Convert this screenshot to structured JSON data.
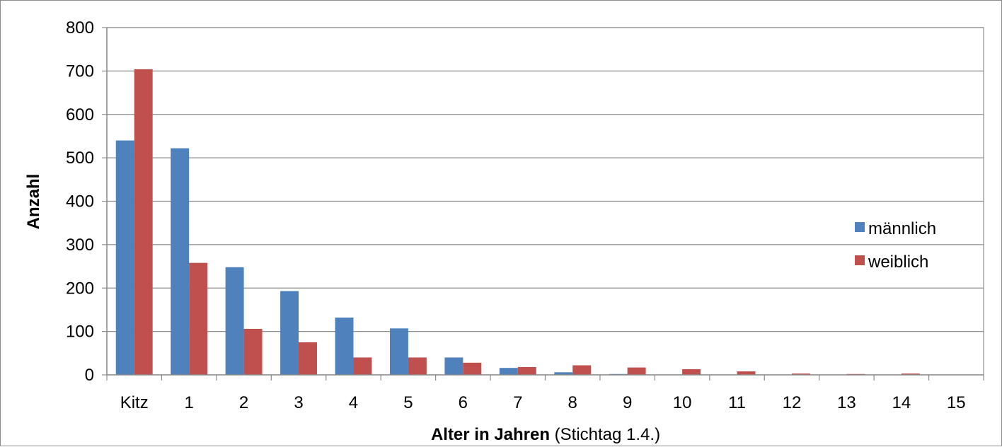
{
  "chart_data": {
    "type": "bar",
    "categories": [
      "Kitz",
      "1",
      "2",
      "3",
      "4",
      "5",
      "6",
      "7",
      "8",
      "9",
      "10",
      "11",
      "12",
      "13",
      "14",
      "15"
    ],
    "series": [
      {
        "name": "männlich",
        "color": "#4f81bd",
        "values": [
          540,
          522,
          248,
          193,
          132,
          107,
          40,
          16,
          6,
          2,
          0,
          0,
          0,
          0,
          0,
          0
        ]
      },
      {
        "name": "weiblich",
        "color": "#c0504d",
        "values": [
          704,
          258,
          106,
          75,
          40,
          40,
          28,
          18,
          22,
          17,
          13,
          8,
          3,
          2,
          3,
          0
        ]
      }
    ],
    "ylim": [
      0,
      800
    ],
    "yticks": [
      0,
      100,
      200,
      300,
      400,
      500,
      600,
      700,
      800
    ],
    "ylabel": "Anzahl",
    "xlabel_bold": "Alter in Jahren",
    "xlabel_rest": " (Stichtag 1.4.)",
    "grid": true,
    "legend": "right"
  }
}
